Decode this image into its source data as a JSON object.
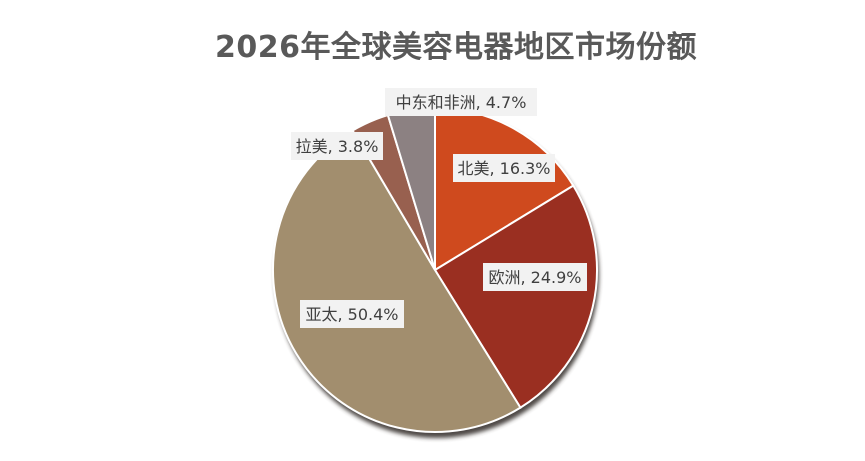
{
  "chart_data": {
    "type": "pie",
    "title": "2026年全球美容电器地区市场份额",
    "slices": [
      {
        "name": "北美",
        "value": 16.3,
        "color": "#CF4A1E"
      },
      {
        "name": "欧洲",
        "value": 24.9,
        "color": "#9A2F21"
      },
      {
        "name": "亚太",
        "value": 50.4,
        "color": "#A28E6E"
      },
      {
        "name": "拉美",
        "value": 3.8,
        "color": "#98604F"
      },
      {
        "name": "中东和非洲",
        "value": 4.7,
        "color": "#8C8182"
      }
    ],
    "data_labels": [
      "北美, 16.3%",
      "欧洲, 24.9%",
      "亚太, 50.4%",
      "拉美, 3.8%",
      "中东和非洲, 4.7%"
    ],
    "legend": "none"
  }
}
